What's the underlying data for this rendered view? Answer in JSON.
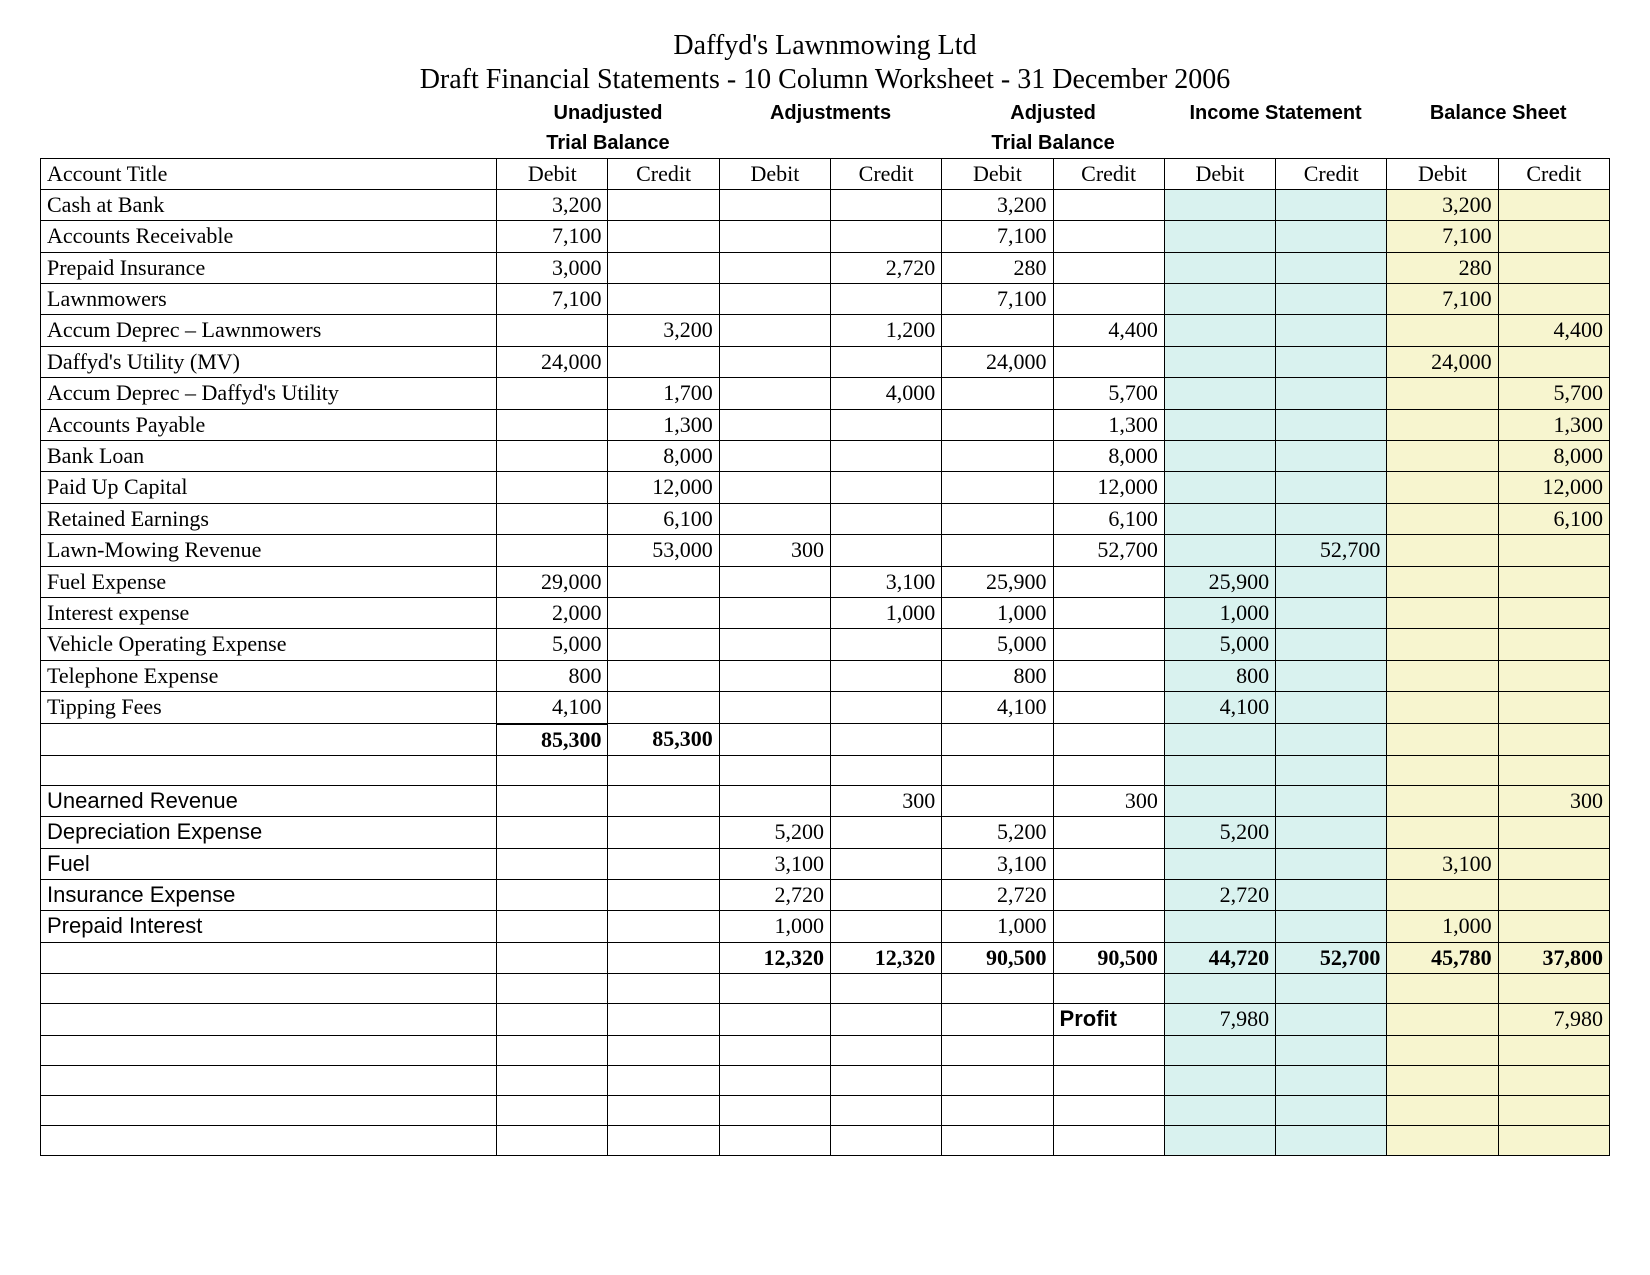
{
  "title": "Daffyd's Lawnmowing Ltd",
  "subtitle": "Draft Financial Statements - 10 Column Worksheet - 31 December 2006",
  "sections": {
    "unadjusted": "Unadjusted",
    "unadjusted2": "Trial Balance",
    "adjustments": "Adjustments",
    "adjusted": "Adjusted",
    "adjusted2": "Trial Balance",
    "income_statement": "Income Statement",
    "balance_sheet": "Balance Sheet"
  },
  "headers": {
    "account_title": "Account Title",
    "debit": "Debit",
    "credit": "Credit"
  },
  "colors": {
    "income_statement_bg": "#d9f2ef",
    "balance_sheet_bg": "#f7f5cf",
    "border": "#000000",
    "background": "#ffffff"
  },
  "rows": [
    {
      "title": "Cash at Bank",
      "utb_d": "3,200",
      "utb_c": "",
      "adj_d": "",
      "adj_c": "",
      "atb_d": "3,200",
      "atb_c": "",
      "is_d": "",
      "is_c": "",
      "bs_d": "3,200",
      "bs_c": "",
      "atb_small": true
    },
    {
      "title": "Accounts Receivable",
      "utb_d": "7,100",
      "utb_c": "",
      "adj_d": "",
      "adj_c": "",
      "atb_d": "7,100",
      "atb_c": "",
      "is_d": "",
      "is_c": "",
      "bs_d": "7,100",
      "bs_c": "",
      "atb_small": true
    },
    {
      "title": "Prepaid Insurance",
      "utb_d": "3,000",
      "utb_c": "",
      "adj_d": "",
      "adj_c": "2,720",
      "atb_d": "280",
      "atb_c": "",
      "is_d": "",
      "is_c": "",
      "bs_d": "280",
      "bs_c": "",
      "adj_small": true,
      "atb_small": true
    },
    {
      "title": "Lawnmowers",
      "utb_d": "7,100",
      "utb_c": "",
      "adj_d": "",
      "adj_c": "",
      "atb_d": "7,100",
      "atb_c": "",
      "is_d": "",
      "is_c": "",
      "bs_d": "7,100",
      "bs_c": "",
      "atb_small": true
    },
    {
      "title": "Accum Deprec – Lawnmowers",
      "utb_d": "",
      "utb_c": "3,200",
      "adj_d": "",
      "adj_c": "1,200",
      "atb_d": "",
      "atb_c": "4,400",
      "is_d": "",
      "is_c": "",
      "bs_d": "",
      "bs_c": "4,400",
      "adj_small": true,
      "atb_small": true
    },
    {
      "title": "Daffyd's Utility (MV)",
      "utb_d": "24,000",
      "utb_c": "",
      "adj_d": "",
      "adj_c": "",
      "atb_d": "24,000",
      "atb_c": "",
      "is_d": "",
      "is_c": "",
      "bs_d": "24,000",
      "bs_c": "",
      "atb_small": true
    },
    {
      "title": "Accum Deprec – Daffyd's Utility",
      "utb_d": "",
      "utb_c": "1,700",
      "adj_d": "",
      "adj_c": "4,000",
      "atb_d": "",
      "atb_c": "5,700",
      "is_d": "",
      "is_c": "",
      "bs_d": "",
      "bs_c": "5,700",
      "adj_small": true,
      "atb_small": true
    },
    {
      "title": "Accounts Payable",
      "utb_d": "",
      "utb_c": "1,300",
      "adj_d": "",
      "adj_c": "",
      "atb_d": "",
      "atb_c": "1,300",
      "is_d": "",
      "is_c": "",
      "bs_d": "",
      "bs_c": "1,300",
      "atb_small": true
    },
    {
      "title": "Bank Loan",
      "utb_d": "",
      "utb_c": "8,000",
      "adj_d": "",
      "adj_c": "",
      "atb_d": "",
      "atb_c": "8,000",
      "is_d": "",
      "is_c": "",
      "bs_d": "",
      "bs_c": "8,000",
      "atb_small": true
    },
    {
      "title": "Paid Up Capital",
      "utb_d": "",
      "utb_c": "12,000",
      "adj_d": "",
      "adj_c": "",
      "atb_d": "",
      "atb_c": "12,000",
      "is_d": "",
      "is_c": "",
      "bs_d": "",
      "bs_c": "12,000",
      "atb_small": true
    },
    {
      "title": "Retained Earnings",
      "utb_d": "",
      "utb_c": "6,100",
      "adj_d": "",
      "adj_c": "",
      "atb_d": "",
      "atb_c": "6,100",
      "is_d": "",
      "is_c": "",
      "bs_d": "",
      "bs_c": "6,100",
      "atb_small": true
    },
    {
      "title": "Lawn-Mowing Revenue",
      "utb_d": "",
      "utb_c": "53,000",
      "adj_d": "300",
      "adj_c": "",
      "atb_d": "",
      "atb_c": "52,700",
      "is_d": "",
      "is_c": "52,700",
      "bs_d": "",
      "bs_c": "",
      "adj_small": true,
      "atb_small": true
    },
    {
      "title": "Fuel Expense",
      "utb_d": "29,000",
      "utb_c": "",
      "adj_d": "",
      "adj_c": "3,100",
      "atb_d": "25,900",
      "atb_c": "",
      "is_d": "25,900",
      "is_c": "",
      "bs_d": "",
      "bs_c": "",
      "adj_small": true,
      "atb_small": true
    },
    {
      "title": "Interest expense",
      "utb_d": "2,000",
      "utb_c": "",
      "adj_d": "",
      "adj_c": "1,000",
      "atb_d": "1,000",
      "atb_c": "",
      "is_d": "1,000",
      "is_c": "",
      "bs_d": "",
      "bs_c": "",
      "adj_small": true,
      "atb_small": true
    },
    {
      "title": "Vehicle Operating Expense",
      "utb_d": "5,000",
      "utb_c": "",
      "adj_d": "",
      "adj_c": "",
      "atb_d": "5,000",
      "atb_c": "",
      "is_d": "5,000",
      "is_c": "",
      "bs_d": "",
      "bs_c": "",
      "atb_small": true
    },
    {
      "title": "Telephone Expense",
      "utb_d": "800",
      "utb_c": "",
      "adj_d": "",
      "adj_c": "",
      "atb_d": "800",
      "atb_c": "",
      "is_d": "800",
      "is_c": "",
      "bs_d": "",
      "bs_c": "",
      "atb_small": true
    },
    {
      "title": "Tipping Fees",
      "utb_d": "4,100",
      "utb_c": "",
      "adj_d": "",
      "adj_c": "",
      "atb_d": "4,100",
      "atb_c": "",
      "is_d": "4,100",
      "is_c": "",
      "bs_d": "",
      "bs_c": "",
      "atb_small": true,
      "utb_underline": true
    }
  ],
  "utb_totals": {
    "debit": "85,300",
    "credit": "85,300"
  },
  "rows2": [
    {
      "title": "Unearned Revenue",
      "adj_d": "",
      "adj_c": "300",
      "atb_d": "",
      "atb_c": "300",
      "is_d": "",
      "is_c": "",
      "bs_d": "",
      "bs_c": "300",
      "sans": true,
      "adj_small": true,
      "atb_small": true
    },
    {
      "title": "Depreciation Expense",
      "adj_d": "5,200",
      "adj_c": "",
      "atb_d": "5,200",
      "atb_c": "",
      "is_d": "5,200",
      "is_c": "",
      "bs_d": "",
      "bs_c": "",
      "sans": true,
      "adj_small": true,
      "atb_small": true
    },
    {
      "title": "Fuel",
      "adj_d": "3,100",
      "adj_c": "",
      "atb_d": "3,100",
      "atb_c": "",
      "is_d": "",
      "is_c": "",
      "bs_d": "3,100",
      "bs_c": "",
      "sans": true,
      "adj_small": true,
      "atb_small": true
    },
    {
      "title": "Insurance Expense",
      "adj_d": "2,720",
      "adj_c": "",
      "atb_d": "2,720",
      "atb_c": "",
      "is_d": "2,720",
      "is_c": "",
      "bs_d": "",
      "bs_c": "",
      "sans": true,
      "adj_small": true,
      "atb_small": true
    },
    {
      "title": "Prepaid Interest",
      "adj_d": "1,000",
      "adj_c": "",
      "atb_d": "1,000",
      "atb_c": "",
      "is_d": "",
      "is_c": "",
      "bs_d": "1,000",
      "bs_c": "",
      "sans": true,
      "adj_small": true,
      "atb_small": true
    }
  ],
  "totals_row": {
    "adj_d": "12,320",
    "adj_c": "12,320",
    "atb_d": "90,500",
    "atb_c": "90,500",
    "is_d": "44,720",
    "is_c": "52,700",
    "bs_d": "45,780",
    "bs_c": "37,800"
  },
  "profit_label": "Profit",
  "profit_row": {
    "is_d": "7,980",
    "bs_c": "7,980"
  },
  "trailing_blank_rows": 4
}
